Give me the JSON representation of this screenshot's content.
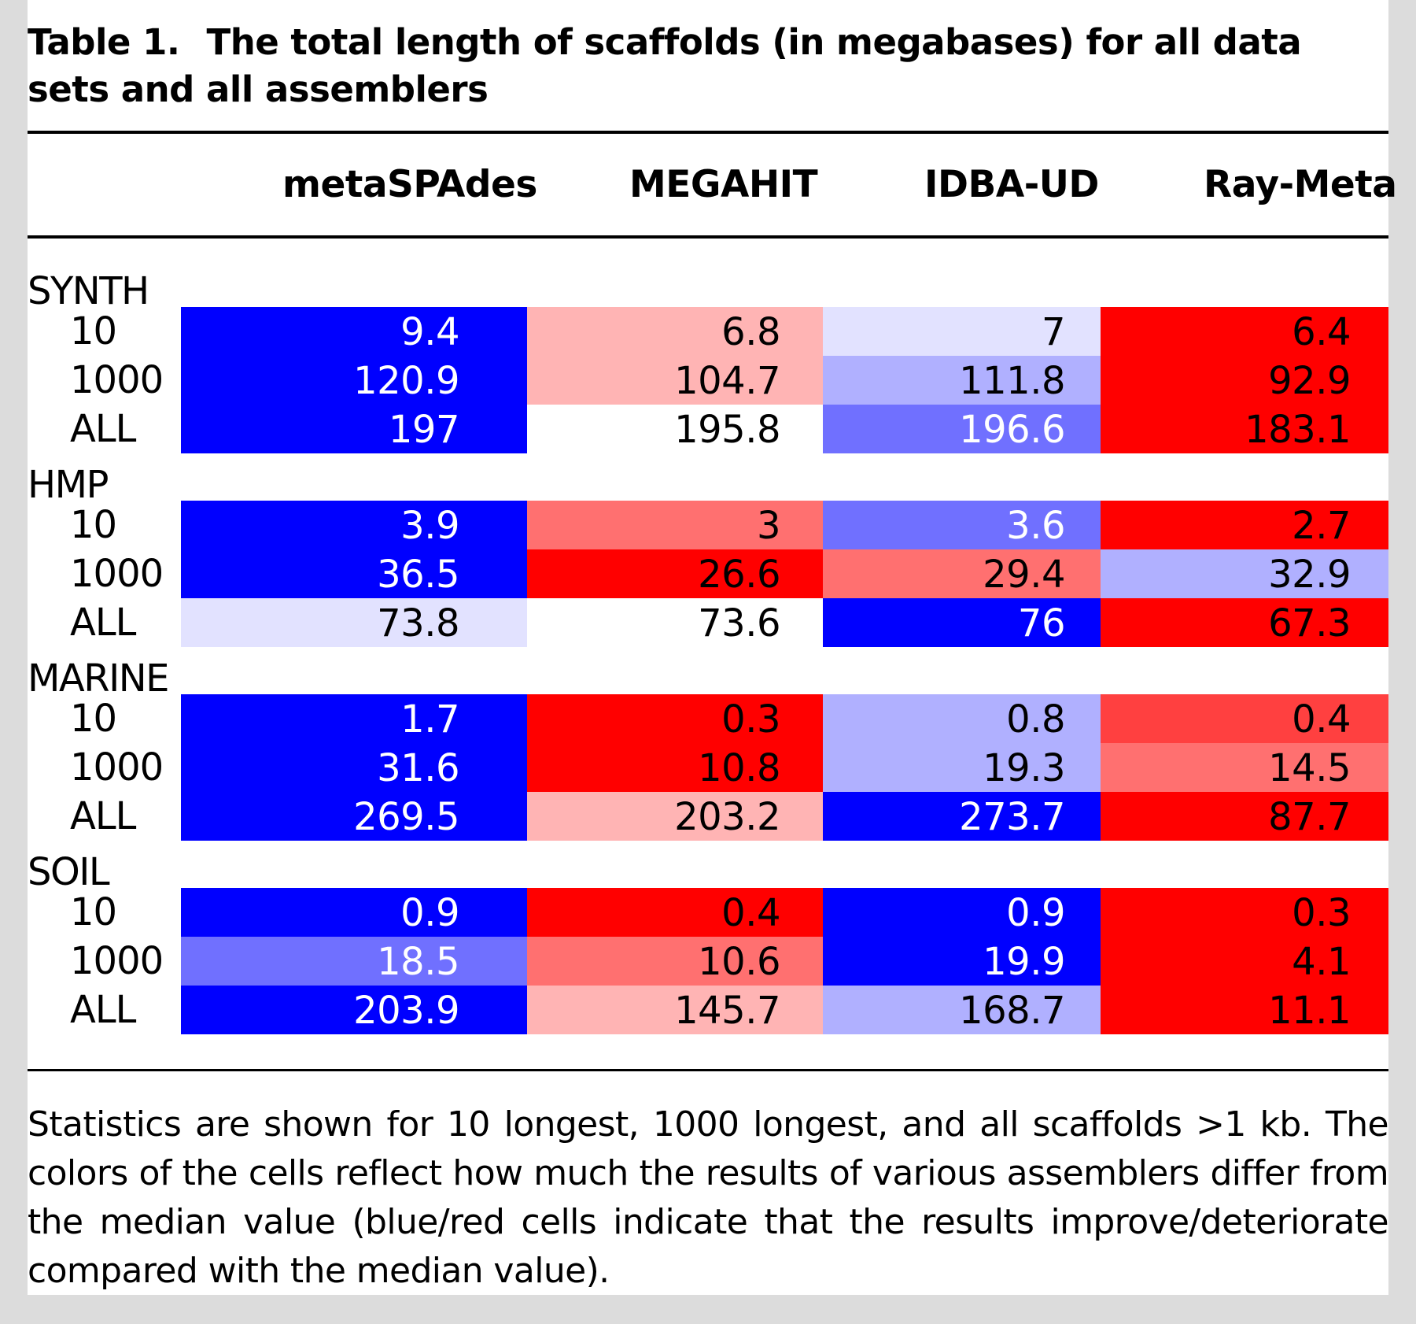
{
  "caption": {
    "label": "Table 1.",
    "text": "The total length of scaffolds (in megabases) for all data sets and all assemblers"
  },
  "columns": [
    "metaSPAdes",
    "MEGAHIT",
    "IDBA-UD",
    "Ray-Meta"
  ],
  "colors": {
    "strong_blue": "#0000ff",
    "medium_blue": "#7070ff",
    "light_blue": "#b0b0ff",
    "pale_blue": "#e2e2ff",
    "white": "#ffffff",
    "pale_red": "#ffb4b4",
    "light_red": "#ff7070",
    "medium_red": "#ff4040",
    "strong_red": "#ff0000"
  },
  "groups": [
    {
      "name": "SYNTH",
      "rows": [
        {
          "label": "10",
          "values": [
            "9.4",
            "6.8",
            "7",
            "6.4"
          ],
          "shades": [
            "strong_blue",
            "pale_red",
            "pale_blue",
            "strong_red"
          ]
        },
        {
          "label": "1000",
          "values": [
            "120.9",
            "104.7",
            "111.8",
            "92.9"
          ],
          "shades": [
            "strong_blue",
            "pale_red",
            "light_blue",
            "strong_red"
          ]
        },
        {
          "label": "ALL",
          "values": [
            "197",
            "195.8",
            "196.6",
            "183.1"
          ],
          "shades": [
            "strong_blue",
            "white",
            "medium_blue",
            "strong_red"
          ]
        }
      ]
    },
    {
      "name": "HMP",
      "rows": [
        {
          "label": "10",
          "values": [
            "3.9",
            "3",
            "3.6",
            "2.7"
          ],
          "shades": [
            "strong_blue",
            "light_red",
            "medium_blue",
            "strong_red"
          ]
        },
        {
          "label": "1000",
          "values": [
            "36.5",
            "26.6",
            "29.4",
            "32.9"
          ],
          "shades": [
            "strong_blue",
            "strong_red",
            "light_red",
            "light_blue"
          ]
        },
        {
          "label": "ALL",
          "values": [
            "73.8",
            "73.6",
            "76",
            "67.3"
          ],
          "shades": [
            "pale_blue",
            "white",
            "strong_blue",
            "strong_red"
          ]
        }
      ]
    },
    {
      "name": "MARINE",
      "rows": [
        {
          "label": "10",
          "values": [
            "1.7",
            "0.3",
            "0.8",
            "0.4"
          ],
          "shades": [
            "strong_blue",
            "strong_red",
            "light_blue",
            "medium_red"
          ]
        },
        {
          "label": "1000",
          "values": [
            "31.6",
            "10.8",
            "19.3",
            "14.5"
          ],
          "shades": [
            "strong_blue",
            "strong_red",
            "light_blue",
            "light_red"
          ]
        },
        {
          "label": "ALL",
          "values": [
            "269.5",
            "203.2",
            "273.7",
            "87.7"
          ],
          "shades": [
            "strong_blue",
            "pale_red",
            "strong_blue",
            "strong_red"
          ]
        }
      ]
    },
    {
      "name": "SOIL",
      "rows": [
        {
          "label": "10",
          "values": [
            "0.9",
            "0.4",
            "0.9",
            "0.3"
          ],
          "shades": [
            "strong_blue",
            "strong_red",
            "strong_blue",
            "strong_red"
          ]
        },
        {
          "label": "1000",
          "values": [
            "18.5",
            "10.6",
            "19.9",
            "4.1"
          ],
          "shades": [
            "medium_blue",
            "light_red",
            "strong_blue",
            "strong_red"
          ]
        },
        {
          "label": "ALL",
          "values": [
            "203.9",
            "145.7",
            "168.7",
            "11.1"
          ],
          "shades": [
            "strong_blue",
            "pale_red",
            "light_blue",
            "strong_red"
          ]
        }
      ]
    }
  ],
  "footnote": "Statistics are shown for 10 longest, 1000 longest, and all scaffolds >1 kb. The colors of the cells reflect how much the results of various assemblers differ from the median value (blue/red cells indicate that the results improve/deteriorate compared with the median value)."
}
